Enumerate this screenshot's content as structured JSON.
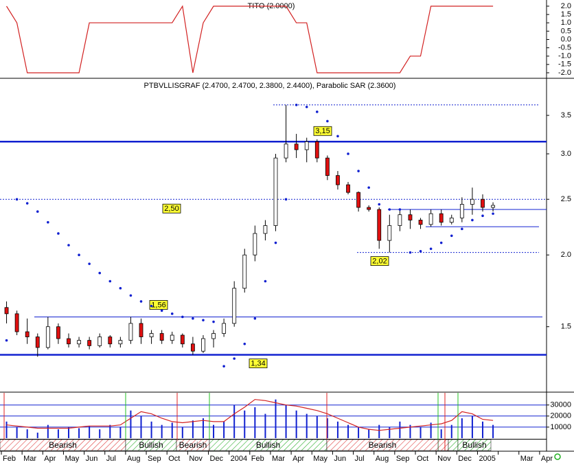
{
  "chart_data": [
    {
      "type": "line",
      "title": "TITO (2.0000)",
      "color": "#d22020",
      "values": [
        2,
        1,
        -2,
        -2,
        -2,
        -2,
        -2,
        -2,
        1,
        1,
        1,
        1,
        1,
        1,
        1,
        1,
        1,
        2,
        -2,
        1,
        2,
        2,
        2,
        2,
        2,
        2,
        2,
        2,
        1,
        1,
        -2,
        -2,
        -2,
        -2,
        -2,
        -2,
        -2,
        -2,
        -2,
        -1,
        -1,
        2,
        2,
        2,
        2,
        2,
        2,
        2
      ],
      "ylim": [
        -2.29,
        2.37
      ],
      "yticks": [
        {
          "value": 2,
          "label": "2.0"
        },
        1.5,
        {
          "value": 1,
          "label": "1.0"
        },
        0.5,
        {
          "value": 0,
          "label": "0.0"
        },
        -0.5,
        {
          "value": -1,
          "label": "-1.0"
        },
        -1.5,
        {
          "value": -2,
          "label": "-2.0"
        }
      ]
    },
    {
      "type": "candlestick",
      "title": "PTBVLLISGRAF (2.4700, 2.4700, 2.3800, 2.4400), Parabolic SAR (2.3600)",
      "log_scale": true,
      "up_color": "#ffffff",
      "down_color": "#e01010",
      "sar_color": "#1020d0",
      "open": [
        1.62,
        1.58,
        1.47,
        1.44,
        1.38,
        1.5,
        1.43,
        1.4,
        1.42,
        1.39,
        1.44,
        1.4,
        1.42,
        1.52,
        1.44,
        1.46,
        1.42,
        1.45,
        1.4,
        1.36,
        1.43,
        1.46,
        1.52,
        1.75,
        2.0,
        2.18,
        2.25,
        2.95,
        3.12,
        3.05,
        3.15,
        2.95,
        2.75,
        2.65,
        2.57,
        2.42,
        2.4,
        2.12,
        2.25,
        2.35,
        2.3,
        2.26,
        2.36,
        2.28,
        2.32,
        2.45,
        2.5,
        2.42
      ],
      "high": [
        1.66,
        1.6,
        1.55,
        1.46,
        1.56,
        1.52,
        1.46,
        1.44,
        1.44,
        1.46,
        1.45,
        1.44,
        1.56,
        1.55,
        1.48,
        1.48,
        1.47,
        1.46,
        1.44,
        1.45,
        1.48,
        1.55,
        1.8,
        2.05,
        2.25,
        2.3,
        3.0,
        3.65,
        3.25,
        3.2,
        3.18,
        2.98,
        2.8,
        2.68,
        2.58,
        2.44,
        2.42,
        2.35,
        2.4,
        2.4,
        2.32,
        2.4,
        2.4,
        2.35,
        2.52,
        2.62,
        2.55,
        2.47
      ],
      "low": [
        1.52,
        1.45,
        1.4,
        1.33,
        1.37,
        1.4,
        1.38,
        1.38,
        1.37,
        1.38,
        1.38,
        1.38,
        1.4,
        1.4,
        1.4,
        1.4,
        1.4,
        1.38,
        1.34,
        1.35,
        1.38,
        1.44,
        1.5,
        1.72,
        1.95,
        2.12,
        2.2,
        2.9,
        2.95,
        2.9,
        2.9,
        2.7,
        2.6,
        2.55,
        2.38,
        2.38,
        2.05,
        2.02,
        2.2,
        2.22,
        2.22,
        2.24,
        2.25,
        2.26,
        2.28,
        2.35,
        2.38,
        2.38
      ],
      "close": [
        1.58,
        1.47,
        1.44,
        1.38,
        1.5,
        1.43,
        1.4,
        1.42,
        1.39,
        1.44,
        1.4,
        1.42,
        1.52,
        1.44,
        1.46,
        1.42,
        1.45,
        1.4,
        1.36,
        1.43,
        1.46,
        1.52,
        1.75,
        2.0,
        2.18,
        2.25,
        2.95,
        3.12,
        3.05,
        3.15,
        2.95,
        2.75,
        2.65,
        2.57,
        2.42,
        2.4,
        2.12,
        2.25,
        2.35,
        2.3,
        2.26,
        2.36,
        2.28,
        2.32,
        2.45,
        2.5,
        2.42,
        2.44
      ],
      "sar": [
        1.42,
        2.5,
        2.46,
        2.38,
        2.28,
        2.18,
        2.08,
        2.0,
        1.93,
        1.86,
        1.8,
        1.75,
        1.7,
        1.66,
        1.63,
        1.6,
        1.58,
        1.56,
        1.55,
        1.54,
        1.53,
        1.28,
        1.32,
        1.4,
        1.55,
        1.8,
        2.1,
        2.5,
        3.65,
        3.62,
        3.55,
        3.42,
        3.22,
        3.0,
        2.8,
        2.62,
        2.45,
        2.4,
        2.4,
        2.02,
        2.03,
        2.05,
        2.1,
        2.16,
        2.22,
        2.3,
        2.34,
        2.36
      ],
      "levels": [
        {
          "value": 3.65,
          "style": "dotted"
        },
        {
          "value": 3.15,
          "label": "3,15",
          "style": "thick"
        },
        {
          "value": 2.5,
          "label": "2,50",
          "style": "dotted"
        },
        {
          "value": 2.4,
          "style": "thin"
        },
        {
          "value": 2.24,
          "style": "thin"
        },
        {
          "value": 2.02,
          "label": "2,02",
          "style": "dotted"
        },
        {
          "value": 1.56,
          "label": "1,56",
          "style": "thin"
        },
        {
          "value": 1.34,
          "label": "1,34",
          "style": "thick"
        }
      ],
      "ylim": [
        1.157,
        4.05
      ],
      "yticks": [
        3.5,
        {
          "value": 3,
          "label": "3.0"
        },
        2.5,
        {
          "value": 2,
          "label": "2.0"
        },
        1.5
      ]
    },
    {
      "type": "bar",
      "color": "#1020d0",
      "ma_color": "#d22020",
      "categories": [
        "Feb",
        null,
        "Mar",
        null,
        "Apr",
        null,
        "May",
        null,
        "Jun",
        null,
        "Jul",
        null,
        "Aug",
        null,
        "Sep",
        null,
        "Oct",
        null,
        "Nov",
        null,
        "Dec",
        null,
        "2004",
        null,
        "Feb",
        null,
        "Mar",
        null,
        "Apr",
        null,
        "May",
        null,
        "Jun",
        null,
        "Jul",
        null,
        "Aug",
        null,
        "Sep",
        null,
        "Oct",
        null,
        "Nov",
        null,
        "Dec",
        null,
        "2005",
        null,
        null,
        null,
        "Mar",
        null,
        "Apr",
        null
      ],
      "values": [
        15000,
        10000,
        8000,
        5000,
        12000,
        8000,
        10000,
        9000,
        11000,
        8000,
        12000,
        10000,
        25000,
        20000,
        15000,
        12000,
        14000,
        10000,
        16000,
        18000,
        12000,
        15000,
        30000,
        25000,
        28000,
        22000,
        35000,
        30000,
        25000,
        22000,
        20000,
        18000,
        15000,
        12000,
        10000,
        8000,
        12000,
        10000,
        15000,
        12000,
        10000,
        14000,
        8000,
        12000,
        18000,
        20000,
        15000,
        12000,
        null,
        null,
        null,
        null,
        null,
        null
      ],
      "moving_average": [
        12000,
        11000,
        10000,
        9000,
        9000,
        9000,
        9000,
        10000,
        11000,
        11000,
        11000,
        12000,
        18000,
        24000,
        22000,
        18000,
        15000,
        14000,
        15000,
        16000,
        15000,
        15000,
        22000,
        28000,
        35000,
        34000,
        32000,
        30000,
        29000,
        27000,
        25000,
        22000,
        18000,
        14000,
        10000,
        8000,
        7000,
        8000,
        9000,
        10000,
        11000,
        12000,
        13000,
        16000,
        24000,
        22000,
        17000,
        16000,
        null,
        null,
        null,
        null,
        null,
        null
      ],
      "ylim": [
        0,
        41000
      ],
      "yticks": [
        30000,
        20000,
        10000
      ],
      "regime_bands": [
        "Bearish",
        "Bullish",
        "Bearish",
        "Bullish",
        "Bearish",
        "Bullish"
      ]
    }
  ]
}
